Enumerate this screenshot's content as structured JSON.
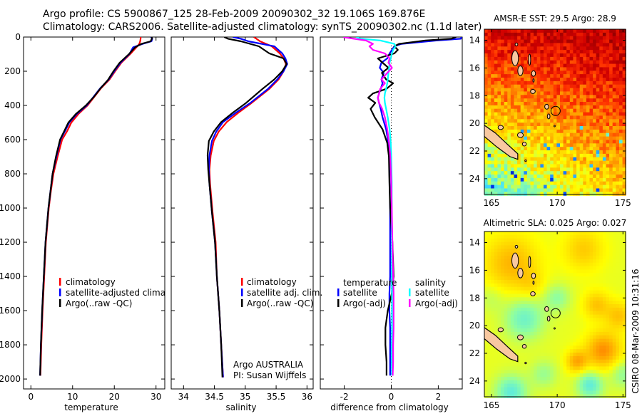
{
  "title": {
    "line1": "Argo profile: CS 5900867_125 28-Feb-2009 20090302_32 19.106S 169.876E",
    "line2": "Climatology: CARS2006. Satellite-adjusted climatology: synTS_20090302.nc (1.1d later)"
  },
  "credit": {
    "program": "Argo AUSTRALIA",
    "pi": "PI: Susan Wijffels",
    "stamp": "CSIRO 08-Mar-2009 10:31:16"
  },
  "colors": {
    "climatology": "#ff0000",
    "satellite": "#0000ff",
    "argo": "#000000",
    "sal_satellite": "#00ffff",
    "sal_argo": "#ff00ff"
  },
  "chart_data": [
    {
      "type": "line",
      "xlabel": "temperature",
      "ylabel": "",
      "xlim": [
        -1.76,
        32.1
      ],
      "ylim": [
        0,
        2058
      ],
      "y_reversed": true,
      "xticks": [
        0,
        10,
        20,
        30
      ],
      "yticks": [
        0,
        200,
        400,
        600,
        800,
        1000,
        1200,
        1400,
        1600,
        1800,
        2000
      ],
      "legend": {
        "placement": "lower-middle",
        "entries": [
          "climatology",
          "satellite-adjusted climatology",
          "Argo(..raw -QC)"
        ]
      },
      "depth": [
        0,
        10,
        25,
        40,
        60,
        100,
        150,
        200,
        250,
        300,
        350,
        400,
        450,
        500,
        550,
        600,
        700,
        800,
        900,
        1000,
        1200,
        1400,
        1600,
        1800,
        1980
      ],
      "series": [
        {
          "name": "climatology",
          "color": "#ff0000",
          "values": [
            26.3,
            26.3,
            26.2,
            26.0,
            25.3,
            23.8,
            21.7,
            20.2,
            18.8,
            16.8,
            15.2,
            13.6,
            11.4,
            9.7,
            8.7,
            7.5,
            6.4,
            5.4,
            4.8,
            4.3,
            3.6,
            3.2,
            2.8,
            2.5,
            2.3
          ]
        },
        {
          "name": "satellite-adjusted climatology",
          "color": "#0000ff",
          "values": [
            28.8,
            29.1,
            28.9,
            26.8,
            24.5,
            23.6,
            21.5,
            20.0,
            18.6,
            16.6,
            15.0,
            13.4,
            11.0,
            9.2,
            8.2,
            7.1,
            6.1,
            5.2,
            4.7,
            4.2,
            3.5,
            3.1,
            2.7,
            2.4,
            2.2
          ]
        },
        {
          "name": "Argo(..raw -QC)",
          "color": "#000000",
          "values": [
            29.0,
            29.0,
            28.7,
            26.5,
            25.0,
            23.5,
            21.3,
            19.8,
            18.5,
            16.7,
            15.1,
            13.2,
            10.8,
            9.0,
            8.0,
            7.0,
            6.0,
            5.2,
            4.7,
            4.2,
            3.5,
            3.1,
            2.7,
            2.4,
            2.2
          ]
        }
      ]
    },
    {
      "type": "line",
      "xlabel": "salinity",
      "xlim": [
        33.8,
        36.1
      ],
      "ylim": [
        0,
        2058
      ],
      "y_reversed": true,
      "xticks": [
        34,
        34.5,
        35,
        35.5,
        36
      ],
      "legend": {
        "placement": "lower-right",
        "entries": [
          "climatology",
          "satellite adj. clim.",
          "Argo(..raw -QC)"
        ]
      },
      "depth": [
        0,
        10,
        25,
        54,
        96,
        125,
        158,
        200,
        248,
        303,
        386,
        442,
        497,
        553,
        608,
        692,
        775,
        858,
        1025,
        1200,
        1400,
        1600,
        1800,
        1990
      ],
      "series": [
        {
          "name": "climatology",
          "color": "#ff0000",
          "values": [
            35.14,
            35.18,
            35.24,
            35.43,
            35.56,
            35.62,
            35.66,
            35.62,
            35.54,
            35.39,
            35.1,
            34.89,
            34.7,
            34.57,
            34.49,
            34.44,
            34.42,
            34.43,
            34.47,
            34.52,
            34.54,
            34.58,
            34.61,
            34.64
          ]
        },
        {
          "name": "satellite adj. clim.",
          "color": "#0000ff",
          "values": [
            34.8,
            34.93,
            35.05,
            35.47,
            35.6,
            35.65,
            35.68,
            35.62,
            35.52,
            35.37,
            35.08,
            34.85,
            34.64,
            34.53,
            34.46,
            34.42,
            34.41,
            34.42,
            34.46,
            34.51,
            34.54,
            34.58,
            34.61,
            34.64
          ]
        },
        {
          "name": "Argo(..raw -QC)",
          "color": "#000000",
          "values": [
            34.66,
            34.72,
            34.93,
            35.22,
            35.39,
            35.62,
            35.67,
            35.6,
            35.47,
            35.28,
            35.01,
            34.8,
            34.61,
            34.49,
            34.41,
            34.39,
            34.4,
            34.42,
            34.46,
            34.51,
            34.54,
            34.58,
            34.61,
            34.63
          ]
        }
      ]
    },
    {
      "type": "line",
      "xlabel": "difference from climatology",
      "xlim": [
        -3.02,
        3.02
      ],
      "ylim": [
        0,
        2058
      ],
      "y_reversed": true,
      "xticks": [
        -2,
        0,
        2
      ],
      "zero_line": "dotted",
      "legend": {
        "placement": "lower",
        "groups": [
          {
            "heading": "temperature",
            "entries": [
              "satellite",
              "Argo(-adj)"
            ]
          },
          {
            "heading": "salinity",
            "entries": [
              "satellite",
              "Argo(-adj)"
            ]
          }
        ]
      },
      "depth": [
        0,
        10,
        20,
        40,
        54,
        75,
        96,
        125,
        150,
        180,
        210,
        248,
        270,
        303,
        330,
        355,
        385,
        420,
        470,
        540,
        620,
        700,
        850,
        1000,
        1200,
        1400,
        1500,
        1600,
        1700,
        1800,
        1900,
        1980
      ],
      "series": [
        {
          "name": "temperature satellite",
          "color": "#0000ff",
          "values": [
            2.99,
            2.96,
            1.95,
            0.43,
            0.13,
            0.03,
            -0.07,
            -0.17,
            -0.42,
            -0.49,
            -0.32,
            -0.42,
            -0.37,
            -0.45,
            -0.52,
            -0.57,
            -0.52,
            -0.45,
            -0.37,
            -0.22,
            -0.12,
            -0.09,
            -0.07,
            -0.05,
            -0.05,
            -0.05,
            -0.08,
            -0.08,
            -0.05,
            -0.05,
            -0.05,
            -0.05
          ]
        },
        {
          "name": "temperature Argo(-adj)",
          "color": "#000000",
          "values": [
            2.76,
            2.56,
            1.45,
            0.33,
            0.13,
            0.28,
            0.13,
            -0.57,
            -0.37,
            -0.12,
            -0.4,
            -0.22,
            0.08,
            -0.2,
            -0.78,
            -0.98,
            -0.68,
            -0.88,
            -0.7,
            -0.37,
            -0.17,
            -0.1,
            -0.08,
            -0.05,
            0.05,
            0.1,
            0.02,
            -0.15,
            -0.25,
            -0.25,
            -0.2,
            -0.2
          ]
        },
        {
          "name": "salinity satellite",
          "color": "#00ffff",
          "values": [
            -1.49,
            -1.28,
            -0.47,
            0.13,
            0.18,
            0.08,
            0.03,
            -0.02,
            -0.07,
            -0.09,
            -0.12,
            -0.15,
            -0.17,
            -0.22,
            -0.27,
            -0.29,
            -0.27,
            -0.22,
            -0.15,
            -0.07,
            -0.02,
            0,
            0.02,
            0.02,
            0.02,
            0.02,
            0.03,
            0.03,
            0.03,
            0.02,
            0.02,
            0.02
          ]
        },
        {
          "name": "salinity Argo(-adj)",
          "color": "#ff00ff",
          "values": [
            -2.04,
            -1.59,
            -1.08,
            -0.78,
            -0.93,
            -0.78,
            -0.27,
            -0.07,
            -0.12,
            0.03,
            -0.17,
            -0.42,
            -0.27,
            -0.47,
            -0.52,
            -0.57,
            -0.52,
            -0.39,
            -0.27,
            -0.17,
            -0.09,
            -0.04,
            0,
            0.02,
            0.05,
            0.08,
            0.1,
            0.1,
            0.1,
            0.08,
            0.08,
            0.06
          ]
        }
      ]
    },
    {
      "type": "heatmap",
      "title": "AMSR-E SST: 29.5 Argo: 28.9",
      "lon_range": [
        164.46,
        175.2
      ],
      "lat_range_south": [
        13.2,
        25.14
      ],
      "xticks": [
        165,
        170,
        175
      ],
      "yticks": [
        14,
        16,
        18,
        20,
        22,
        24
      ],
      "float_position": {
        "lon": 169.876,
        "lat": -19.106
      }
    },
    {
      "type": "heatmap",
      "title": "Altimetric SLA: 0.025 Argo: 0.027",
      "lon_range": [
        164.46,
        175.2
      ],
      "lat_range_south": [
        13.2,
        25.14
      ],
      "xticks": [
        165,
        170,
        175
      ],
      "yticks": [
        14,
        16,
        18,
        20,
        22,
        24
      ],
      "float_position": {
        "lon": 169.876,
        "lat": -19.106
      }
    }
  ]
}
